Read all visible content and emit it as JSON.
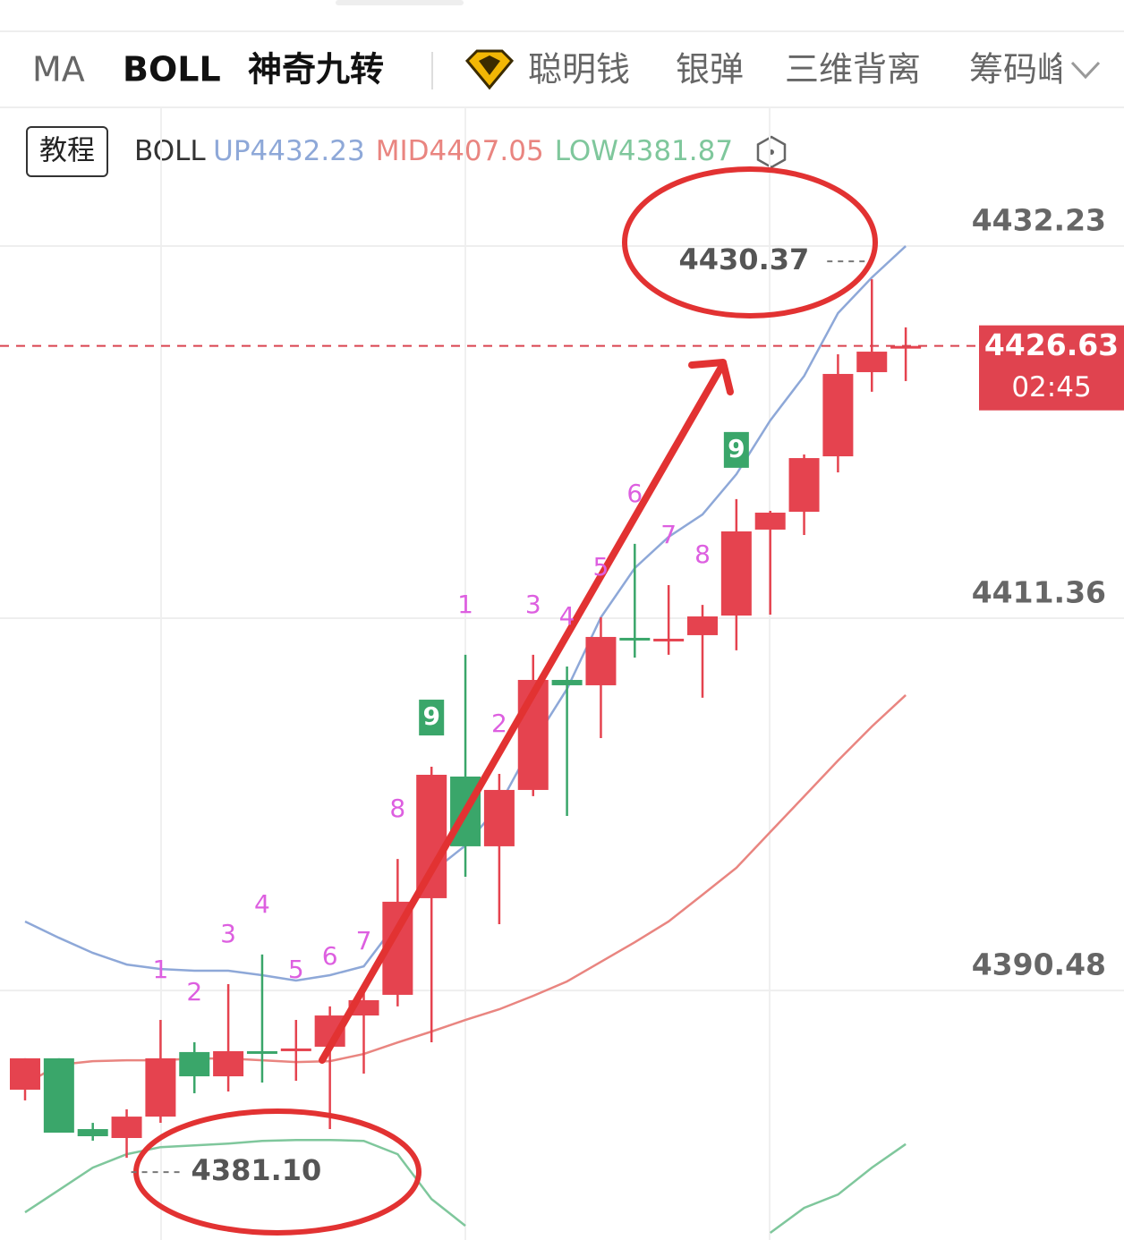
{
  "indicator_bar": {
    "tabs": [
      "MA",
      "BOLL",
      "神奇九转",
      "聪明钱",
      "银弹",
      "三维背离",
      "筹码峰"
    ],
    "selected": [
      1,
      2
    ]
  },
  "tutorial_button": "教程",
  "chart_data": {
    "type": "candlestick",
    "indicator": "BOLL",
    "up_color": "#e5434f",
    "down_color": "#3aa66a",
    "td_color": "#dd5fe0",
    "ylim": [
      4376.49,
      4440.01
    ],
    "yticks": [
      4432.23,
      4411.36,
      4390.48
    ],
    "grid": true,
    "open": [
      4384.92,
      4386.68,
      4382.71,
      4382.21,
      4383.41,
      4387.03,
      4385.67,
      4387.08,
      4387.1,
      4387.33,
      4389.08,
      4390.24,
      4395.66,
      4402.48,
      4398.57,
      4401.73,
      4407.9,
      4407.6,
      4410.26,
      4410.16,
      4410.41,
      4411.51,
      4416.33,
      4417.33,
      4420.44,
      4425.16,
      4426.5
    ],
    "high": [
      4386.68,
      4386.68,
      4383.06,
      4383.82,
      4388.83,
      4387.58,
      4390.84,
      4392.5,
      4388.83,
      4389.59,
      4390.44,
      4397.86,
      4403.03,
      4409.31,
      4402.63,
      4409.31,
      4408.65,
      4411.41,
      4415.53,
      4413.22,
      4412.11,
      4418.04,
      4417.38,
      4420.54,
      4426.16,
      4430.37,
      4427.67
    ],
    "low": [
      4384.32,
      4382.51,
      4382.06,
      4381.1,
      4383.06,
      4384.72,
      4384.82,
      4385.32,
      4385.42,
      4382.71,
      4385.82,
      4389.59,
      4387.58,
      4396.86,
      4394.2,
      4401.38,
      4400.27,
      4404.64,
      4409.15,
      4409.31,
      4406.9,
      4409.56,
      4411.56,
      4416.03,
      4419.54,
      4424.06,
      4424.66
    ],
    "close": [
      4386.68,
      4382.51,
      4382.31,
      4383.41,
      4386.68,
      4385.67,
      4387.08,
      4387.0,
      4387.23,
      4389.08,
      4389.94,
      4395.46,
      4402.58,
      4398.57,
      4401.73,
      4407.9,
      4407.6,
      4410.31,
      4410.2,
      4410.21,
      4411.46,
      4416.23,
      4417.28,
      4420.34,
      4425.06,
      4426.31,
      4426.63
    ],
    "td_counts": [
      null,
      null,
      null,
      null,
      "1",
      "2",
      "3",
      "4",
      "5",
      "6",
      "7",
      "8",
      "9",
      "1",
      "2",
      "3",
      "4",
      "5",
      "6",
      "7",
      "8",
      "9",
      null,
      null,
      null,
      null,
      null
    ],
    "series": [
      {
        "name": "UP",
        "color": "#8ea8d8",
        "values": [
          4394.35,
          4393.44,
          4392.59,
          4391.94,
          4391.69,
          4391.59,
          4391.59,
          4391.34,
          4391.04,
          4391.34,
          4391.84,
          4394.35,
          4397.11,
          4398.61,
          4400.87,
          4404.38,
          4407.39,
          4411.41,
          4414.17,
          4415.92,
          4417.18,
          4419.44,
          4422.45,
          4424.95,
          4428.47,
          4430.47,
          4432.23
        ]
      },
      {
        "name": "MID",
        "color": "#e98580",
        "values": [
          4385.22,
          4386.32,
          4386.52,
          4386.57,
          4386.57,
          4386.67,
          4386.67,
          4386.57,
          4386.47,
          4386.52,
          4386.92,
          4387.57,
          4388.18,
          4388.83,
          4389.43,
          4390.18,
          4390.99,
          4392.09,
          4393.19,
          4394.35,
          4395.85,
          4397.36,
          4399.37,
          4401.37,
          4403.38,
          4405.29,
          4407.05
        ]
      },
      {
        "name": "LOW",
        "color": "#7fc79c",
        "values": [
          4378.04,
          4379.29,
          4380.55,
          4381.3,
          4381.7,
          4381.8,
          4381.9,
          4382.05,
          4382.1,
          4382.1,
          4382.05,
          4381.3,
          4378.79,
          4377.29,
          null,
          null,
          null,
          null,
          null,
          null,
          null,
          null,
          4376.89,
          4378.29,
          4379.04,
          4380.55,
          4381.87
        ]
      }
    ],
    "high_label": "4430.37",
    "low_label": "4381.10",
    "countdown": "02:45"
  }
}
